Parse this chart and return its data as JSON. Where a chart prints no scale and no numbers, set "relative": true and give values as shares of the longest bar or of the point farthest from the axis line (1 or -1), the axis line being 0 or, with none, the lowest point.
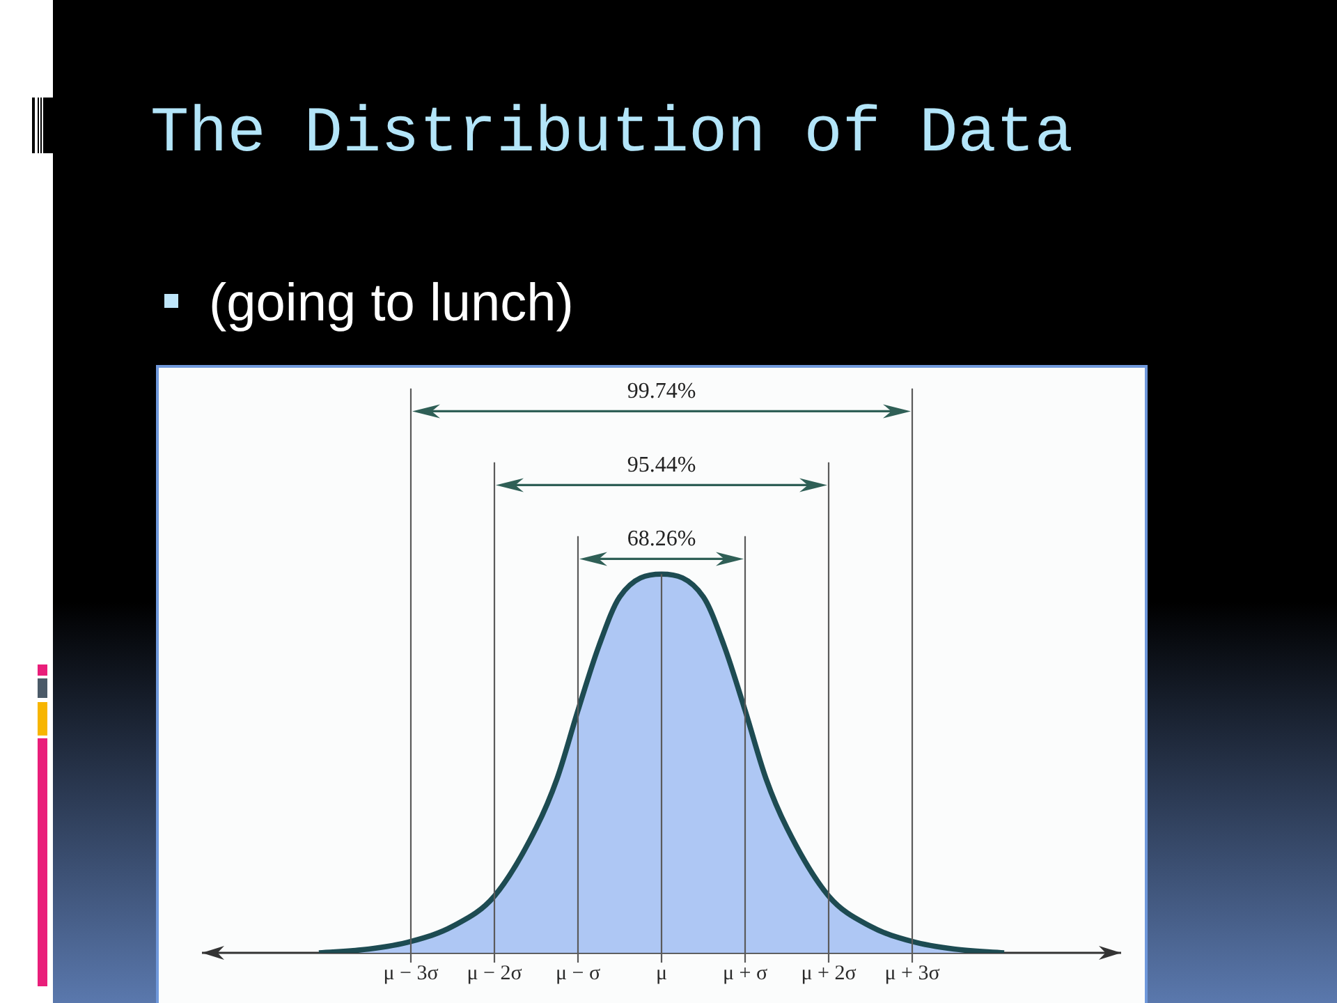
{
  "chart_data": {
    "type": "area",
    "title": "The Distribution of Data",
    "subtitle": "(going to lunch)",
    "relative": true,
    "x": [
      -4.1,
      -3.5,
      -3,
      -2.5,
      -2,
      -1.5,
      -1.25,
      -1,
      -0.75,
      -0.5,
      0,
      0.5,
      0.75,
      1,
      1.25,
      1.5,
      2,
      2.5,
      3,
      3.5,
      4.1
    ],
    "series": [
      {
        "color": "#aec7f4",
        "values": [
          0,
          0.01,
          0.03,
          0.07,
          0.15,
          0.33,
          0.46,
          0.64,
          0.81,
          0.94,
          1,
          0.94,
          0.81,
          0.64,
          0.46,
          0.33,
          0.15,
          0.07,
          0.03,
          0.01,
          0
        ]
      }
    ],
    "xlim": [
      -5.5,
      5.5
    ],
    "xticks": [
      {
        "value": -3,
        "label": "μ − 3σ"
      },
      {
        "value": -2,
        "label": "μ − 2σ"
      },
      {
        "value": -1,
        "label": "μ − σ"
      },
      {
        "value": 0,
        "label": "μ"
      },
      {
        "value": 1,
        "label": "μ + σ"
      },
      {
        "value": 2,
        "label": "μ + 2σ"
      },
      {
        "value": 3,
        "label": "μ + 3σ"
      }
    ],
    "ref_lines": [
      {
        "axis": "x",
        "value": -3
      },
      {
        "axis": "x",
        "value": -2
      },
      {
        "axis": "x",
        "value": -1
      },
      {
        "axis": "x",
        "value": 0
      },
      {
        "axis": "x",
        "value": 1
      },
      {
        "axis": "x",
        "value": 2
      },
      {
        "axis": "x",
        "value": 3
      }
    ],
    "annotations": [
      "99.74%",
      "95.44%",
      "68.26%"
    ]
  }
}
